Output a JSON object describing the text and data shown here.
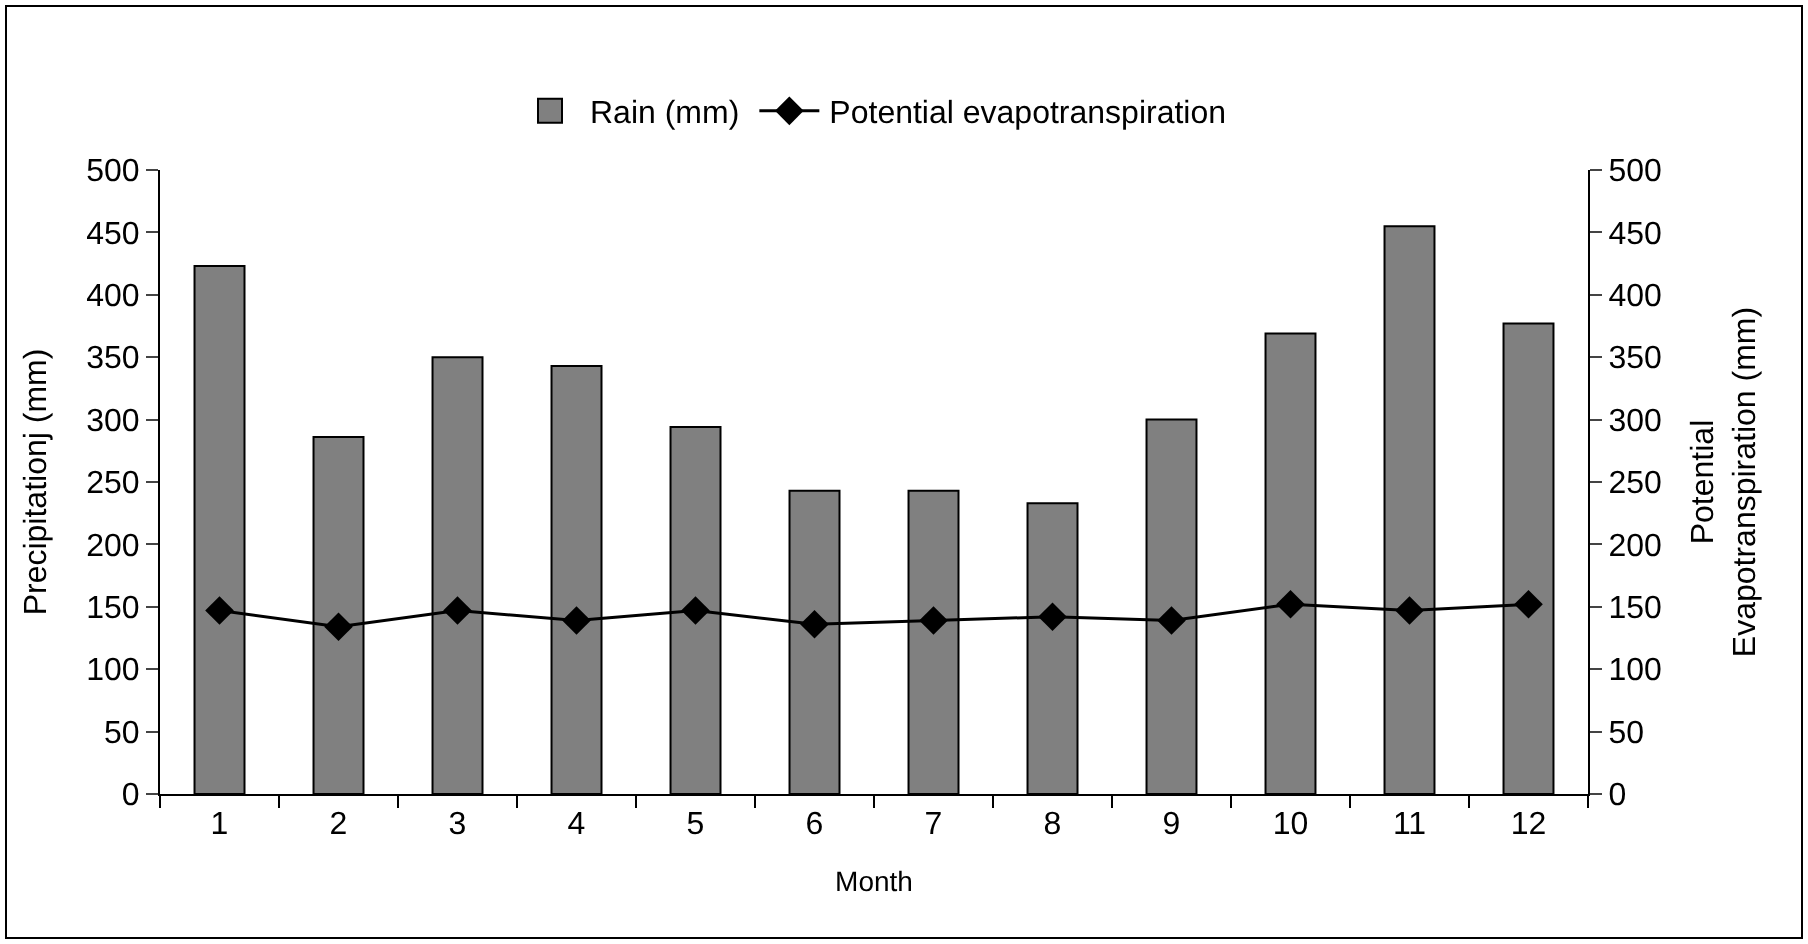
{
  "chart_data": {
    "type": "bar",
    "xlabel": "Month",
    "ylabel": "Precipitationj (mm)",
    "y2label": "Potential\nEvapotranspiration (mm)",
    "x": [
      1,
      2,
      3,
      4,
      5,
      6,
      7,
      8,
      9,
      10,
      11,
      12
    ],
    "xlim": [
      0.5,
      12.5
    ],
    "xticks": [
      1,
      2,
      3,
      4,
      5,
      6,
      7,
      8,
      9,
      10,
      11,
      12
    ],
    "series": [
      {
        "name": "Rain (mm)",
        "color": "#808080",
        "values": [
          423,
          286,
          350,
          343,
          294,
          243,
          243,
          233,
          300,
          369,
          455,
          377
        ]
      },
      {
        "name": "Potential evapotranspiration",
        "type": "line",
        "axis": "y2",
        "color": "#000000",
        "marker": "diamond",
        "values": [
          147,
          134,
          147,
          139,
          147,
          136,
          139,
          142,
          139,
          152,
          147,
          152
        ]
      }
    ],
    "ylim": [
      0,
      500
    ],
    "yticks": [
      0,
      50,
      100,
      150,
      200,
      250,
      300,
      350,
      400,
      450,
      500
    ],
    "y2lim": [
      0,
      500
    ],
    "y2ticks": [
      0,
      50,
      100,
      150,
      200,
      250,
      300,
      350,
      400,
      450,
      500
    ],
    "legend": "top"
  }
}
